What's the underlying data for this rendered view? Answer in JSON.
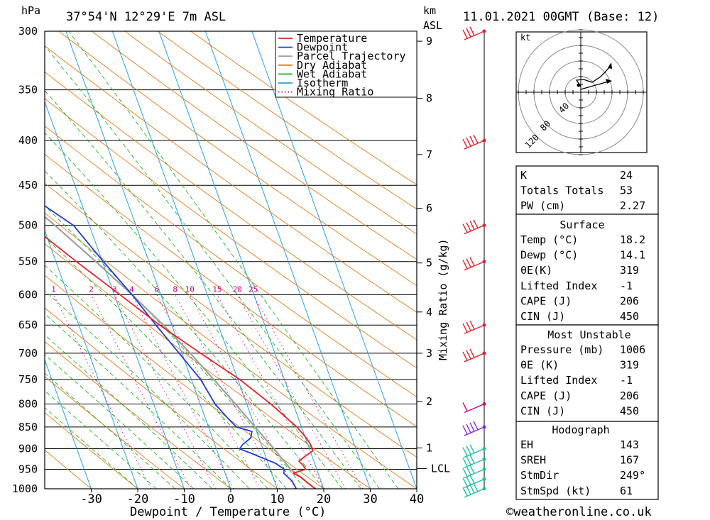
{
  "header": {
    "unit_pressure": "hPa",
    "location": "37°54'N 12°29'E 7m ASL",
    "km_unit": "km",
    "km_asl": "ASL",
    "datetime": "11.01.2021 00GMT (Base: 12)"
  },
  "chart_data": {
    "type": "line",
    "title": "37°54'N 12°29'E 7m ASL",
    "xlabel": "Dewpoint / Temperature (°C)",
    "ylabel": "Mixing Ratio (g/kg)",
    "xlim": [
      -40,
      40
    ],
    "x_ticks": [
      "-30",
      "-20",
      "-10",
      "0",
      "10",
      "20",
      "30",
      "40"
    ],
    "pressure_ticks": [
      "300",
      "350",
      "400",
      "450",
      "500",
      "550",
      "600",
      "650",
      "700",
      "750",
      "800",
      "850",
      "900",
      "950",
      "1000"
    ],
    "km_ticks": [
      {
        "label": "9",
        "p": 308
      },
      {
        "label": "8",
        "p": 358
      },
      {
        "label": "7",
        "p": 415
      },
      {
        "label": "6",
        "p": 478
      },
      {
        "label": "5",
        "p": 552
      },
      {
        "label": "4",
        "p": 628
      },
      {
        "label": "3",
        "p": 700
      },
      {
        "label": "2",
        "p": 795
      },
      {
        "label": "1",
        "p": 898
      }
    ],
    "lcl": {
      "label": "LCL",
      "p": 948
    },
    "mixing_ratio_labels": [
      "1",
      "2",
      "3",
      "4",
      "6",
      "8",
      "10",
      "15",
      "20",
      "25"
    ],
    "legend": [
      "Temperature",
      "Dewpoint",
      "Parcel Trajectory",
      "Dry Adiabat",
      "Wet Adiabat",
      "Isotherm",
      "Mixing Ratio"
    ],
    "series": [
      {
        "name": "Temperature",
        "color": "#e8202a",
        "p": [
          1000,
          985,
          970,
          960,
          950,
          940,
          930,
          920,
          905,
          890,
          875,
          850,
          800,
          750,
          700,
          650,
          600,
          550,
          500,
          450,
          400,
          380,
          370,
          360,
          350,
          340,
          320,
          300
        ],
        "t": [
          18.2,
          17.0,
          16.0,
          14.6,
          17.6,
          17.4,
          16.8,
          18.2,
          20.6,
          20.6,
          20.2,
          19.0,
          15.2,
          10.4,
          4.0,
          -2.6,
          -8.8,
          -15.6,
          -22.6,
          -30.6,
          -39.6,
          -43.8,
          -44.4,
          -45.4,
          -46.2,
          -48.4,
          -51.6,
          -55.2
        ]
      },
      {
        "name": "Dewpoint",
        "color": "#1e3cd8",
        "p": [
          1000,
          980,
          960,
          950,
          935,
          920,
          910,
          900,
          890,
          875,
          860,
          850,
          830,
          800,
          750,
          700,
          650,
          600,
          550,
          500,
          460,
          440,
          400,
          385,
          375,
          360,
          345,
          335,
          325,
          315,
          308,
          302,
          300
        ],
        "t": [
          14.1,
          13.8,
          12.6,
          13.0,
          11.6,
          8.8,
          7.0,
          5.0,
          6.0,
          8.2,
          9.0,
          6.0,
          4.8,
          3.2,
          2.0,
          -0.6,
          -3.4,
          -6.2,
          -9.8,
          -13.4,
          -21.0,
          -26.6,
          -34.0,
          -33.6,
          -37.2,
          -42.6,
          -49.2,
          -53.4,
          -57.6,
          -57.0,
          -60.6,
          -60.0,
          -63.0
        ]
      },
      {
        "name": "Parcel Trajectory",
        "color": "#a0a0a0",
        "p": [
          1000,
          950,
          900,
          850,
          800,
          750,
          700,
          650,
          600,
          550,
          500,
          450,
          400,
          350,
          300
        ],
        "t": [
          18.2,
          14.4,
          12.4,
          10.0,
          7.6,
          4.8,
          1.8,
          -1.8,
          -6.2,
          -11.4,
          -17.4,
          -24.6,
          -33.4,
          -44.2,
          -57.0
        ]
      }
    ],
    "grid": true
  },
  "hodograph": {
    "unit": "kt",
    "ring_labels": [
      "40",
      "80",
      "120"
    ]
  },
  "indices": {
    "top": [
      {
        "label": "K",
        "value": "24"
      },
      {
        "label": "Totals Totals",
        "value": "53"
      },
      {
        "label": "PW (cm)",
        "value": "2.27"
      }
    ],
    "surface": {
      "title": "Surface",
      "rows": [
        {
          "label": "Temp (°C)",
          "value": "18.2"
        },
        {
          "label": "Dewp (°C)",
          "value": "14.1"
        },
        {
          "label": "θE(K)",
          "value": "319"
        },
        {
          "label": "Lifted Index",
          "value": "-1"
        },
        {
          "label": "CAPE (J)",
          "value": "206"
        },
        {
          "label": "CIN (J)",
          "value": "450"
        }
      ]
    },
    "most_unstable": {
      "title": "Most Unstable",
      "rows": [
        {
          "label": "Pressure (mb)",
          "value": "1006"
        },
        {
          "label": "θE (K)",
          "value": "319"
        },
        {
          "label": "Lifted Index",
          "value": "-1"
        },
        {
          "label": "CAPE (J)",
          "value": "206"
        },
        {
          "label": "CIN (J)",
          "value": "450"
        }
      ]
    },
    "hodograph": {
      "title": "Hodograph",
      "rows": [
        {
          "label": "EH",
          "value": "143"
        },
        {
          "label": "SREH",
          "value": "167"
        },
        {
          "label": "StmDir",
          "value": "249°"
        },
        {
          "label": "StmSpd (kt)",
          "value": "61"
        }
      ]
    }
  },
  "footer": {
    "copyright": "©weatheronline.co.uk"
  }
}
